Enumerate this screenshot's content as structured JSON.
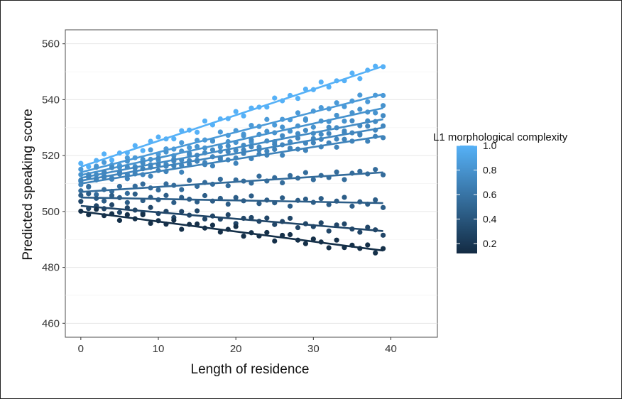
{
  "chart_data": {
    "type": "scatter",
    "xlabel": "Length of residence",
    "ylabel": "Predicted speaking score",
    "xlim": [
      -2,
      46
    ],
    "ylim": [
      455,
      565
    ],
    "x_ticks": [
      "0",
      "10",
      "20",
      "30",
      "40"
    ],
    "y_ticks": [
      "460",
      "480",
      "500",
      "520",
      "540",
      "560"
    ],
    "grid": true,
    "legend": {
      "title": "L1 morphological complexity",
      "type": "color-gradient",
      "placement": "right",
      "labels": [
        "1.0",
        "0.8",
        "0.6",
        "0.4",
        "0.2"
      ],
      "label_values": [
        1.0,
        0.8,
        0.6,
        0.4,
        0.2
      ],
      "range": [
        0.12,
        1.0
      ],
      "low_color": "#132B43",
      "high_color": "#56B1F7"
    },
    "series": [
      {
        "complexity": 1.0,
        "line": {
          "x": [
            0,
            39
          ],
          "y": [
            516,
            552
          ]
        }
      },
      {
        "complexity": 0.85,
        "line": {
          "x": [
            0,
            39
          ],
          "y": [
            514,
            542
          ]
        }
      },
      {
        "complexity": 0.8,
        "line": {
          "x": [
            0,
            39
          ],
          "y": [
            513,
            537
          ]
        }
      },
      {
        "complexity": 0.75,
        "line": {
          "x": [
            0,
            39
          ],
          "y": [
            512,
            533
          ]
        }
      },
      {
        "complexity": 0.72,
        "line": {
          "x": [
            0,
            39
          ],
          "y": [
            511,
            530
          ]
        }
      },
      {
        "complexity": 0.7,
        "line": {
          "x": [
            0,
            39
          ],
          "y": [
            510,
            527
          ]
        }
      },
      {
        "complexity": 0.55,
        "line": {
          "x": [
            0,
            39
          ],
          "y": [
            507,
            514
          ]
        }
      },
      {
        "complexity": 0.45,
        "line": {
          "x": [
            0,
            39
          ],
          "y": [
            505,
            503
          ]
        }
      },
      {
        "complexity": 0.3,
        "line": {
          "x": [
            0,
            39
          ],
          "y": [
            502,
            493
          ]
        }
      },
      {
        "complexity": 0.15,
        "line": {
          "x": [
            0,
            39
          ],
          "y": [
            500,
            486
          ]
        }
      }
    ],
    "point_x": [
      0,
      1,
      2,
      3,
      4,
      5,
      6,
      7,
      8,
      9,
      10,
      11,
      12,
      13,
      14,
      15,
      16,
      17,
      18,
      19,
      20,
      21,
      22,
      23,
      24,
      25,
      26,
      27,
      28,
      29,
      30,
      31,
      32,
      33,
      34,
      35,
      36,
      37,
      38,
      39
    ],
    "point_noise": [
      1.2,
      -0.9,
      0.4,
      1.8,
      -1.3,
      0.3,
      -0.5,
      1.1,
      -1.6,
      0.8,
      1.4,
      -0.2,
      -1.1,
      0.9,
      0.2,
      -1.5,
      1.6,
      -0.7,
      0.5,
      -0.3,
      1.3,
      -1.2,
      0.7,
      0.1,
      -0.8,
      1.5,
      -0.4,
      0.6,
      -1.4,
      1.0,
      -0.1,
      1.7,
      -1.0,
      0.3,
      -0.6,
      1.2,
      -1.7,
      0.4,
      0.9,
      -0.2
    ]
  }
}
